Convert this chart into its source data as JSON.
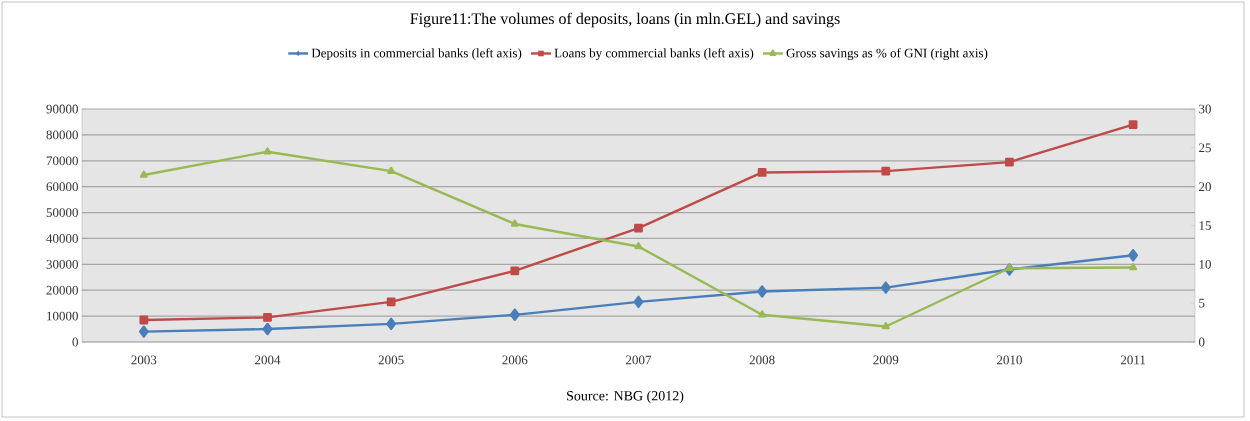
{
  "chart_data": {
    "type": "line",
    "title": "Figure11:The volumes of deposits, loans (in mln.GEL) and savings",
    "categories": [
      "2003",
      "2004",
      "2005",
      "2006",
      "2007",
      "2008",
      "2009",
      "2010",
      "2011"
    ],
    "series": [
      {
        "name": "Deposits in commercial banks (left axis)",
        "color": "#4a7ebb",
        "marker": "diamond",
        "values": [
          4000,
          5000,
          7000,
          10500,
          15500,
          19500,
          21000,
          28000,
          33500
        ]
      },
      {
        "name": "Loans by commercial banks (left axis)",
        "color": "#be4b48",
        "marker": "square",
        "values": [
          8500,
          9500,
          15500,
          27500,
          44000,
          65500,
          66000,
          69500,
          84000
        ]
      },
      {
        "name": "Gross savings as % of GNI (right axis)",
        "color": "#98b954",
        "marker": "triangle",
        "axis": "y2",
        "values": [
          21.5,
          24.5,
          22,
          15.2,
          12.3,
          3.5,
          2,
          9.5,
          9.6
        ]
      }
    ],
    "ylim": [
      0,
      90000
    ],
    "yticks": [
      0,
      10000,
      20000,
      30000,
      40000,
      50000,
      60000,
      70000,
      80000,
      90000
    ],
    "y2lim": [
      0,
      30
    ],
    "y2ticks": [
      0,
      5,
      10,
      15,
      20,
      25,
      30
    ],
    "grid": "y",
    "legend": "top",
    "line_style": "solid",
    "annotations": [
      "Source: NBG (2012)"
    ]
  }
}
